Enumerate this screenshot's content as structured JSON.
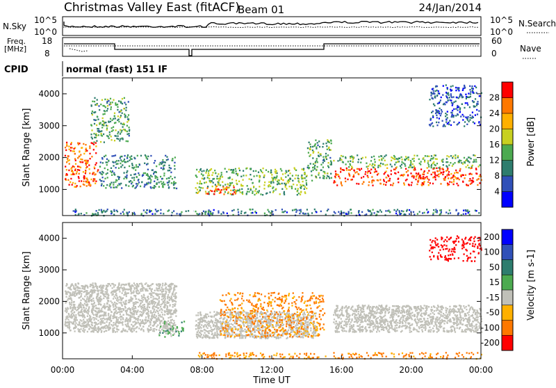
{
  "header": {
    "title": "Christmas Valley East (fitACF)",
    "beam": "Beam 01",
    "date": "24/Jan/2014"
  },
  "status_panels": {
    "nsky_label": "N.Sky",
    "nsearch_label": "N.Search",
    "noise_ticks_left": [
      "10^5",
      "10^0"
    ],
    "noise_ticks_right": [
      "10^5",
      "10^0"
    ],
    "freq_label_line1": "Freq.",
    "freq_label_line2": "[MHz]",
    "freq_ticks": [
      "18",
      "8"
    ],
    "nave_label": "Nave",
    "nave_ticks": [
      "60",
      "0"
    ],
    "cpid_label": "CPID",
    "cpid_value": "normal (fast) 151 IF"
  },
  "chart_data": [
    {
      "type": "heatmap",
      "name": "power",
      "ylabel": "Slant Range [km]",
      "xlabel": "",
      "x_ticks_hours": [
        0,
        4,
        8,
        12,
        16,
        20,
        24
      ],
      "y_ticks": [
        1000,
        2000,
        3000,
        4000
      ],
      "xlim": [
        0,
        24
      ],
      "ylim": [
        180,
        4500
      ],
      "colorbar": {
        "label": "Power [dB]",
        "ticks": [
          "4",
          "8",
          "12",
          "16",
          "20",
          "24",
          "28"
        ],
        "range": [
          0,
          30
        ],
        "colors": [
          "#0000ff",
          "#3050b8",
          "#2e7d6e",
          "#4caa50",
          "#c8d020",
          "#ffb000",
          "#ff7800",
          "#ff0000"
        ]
      },
      "echo_regions": [
        {
          "t0": 0.1,
          "t1": 2.0,
          "r0": 1100,
          "r1": 2500,
          "level": 25
        },
        {
          "t0": 2.1,
          "t1": 6.5,
          "r0": 1050,
          "r1": 2100,
          "level": 10
        },
        {
          "t0": 1.6,
          "t1": 3.8,
          "r0": 2500,
          "r1": 3900,
          "level": 12
        },
        {
          "t0": 7.6,
          "t1": 14.0,
          "r0": 850,
          "r1": 1700,
          "level": 14
        },
        {
          "t0": 8.2,
          "t1": 10.0,
          "r0": 850,
          "r1": 1150,
          "level": 24
        },
        {
          "t0": 14.0,
          "t1": 15.4,
          "r0": 1300,
          "r1": 2600,
          "level": 12
        },
        {
          "t0": 15.5,
          "t1": 24.0,
          "r0": 1150,
          "r1": 1700,
          "level": 27
        },
        {
          "t0": 15.5,
          "t1": 24.0,
          "r0": 1700,
          "r1": 2100,
          "level": 13
        },
        {
          "t0": 0.3,
          "t1": 24.0,
          "r0": 200,
          "r1": 400,
          "level": 8
        },
        {
          "t0": 21.0,
          "t1": 24.0,
          "r0": 3000,
          "r1": 4300,
          "level": 6
        }
      ]
    },
    {
      "type": "heatmap",
      "name": "velocity",
      "xlabel": "Time UT",
      "ylabel": "Slant Range [km]",
      "x_ticks": [
        "00:00",
        "04:00",
        "08:00",
        "12:00",
        "16:00",
        "20:00",
        "00:00"
      ],
      "x_ticks_hours": [
        0,
        4,
        8,
        12,
        16,
        20,
        24
      ],
      "y_ticks": [
        1000,
        2000,
        3000,
        4000
      ],
      "xlim": [
        0,
        24
      ],
      "ylim": [
        180,
        4500
      ],
      "colorbar": {
        "label": "Velocity [m s-1]",
        "ticks": [
          "200",
          "100",
          "50",
          "15",
          "-15",
          "-50",
          "-100",
          "-200"
        ],
        "colors": [
          "#0000ff",
          "#3050b8",
          "#2e7d6e",
          "#4caa50",
          "#c0c0b8",
          "#ffb000",
          "#ff7800",
          "#ff0000"
        ]
      },
      "echo_regions": [
        {
          "t0": 0.1,
          "t1": 6.5,
          "r0": 1050,
          "r1": 2600,
          "class": "ground",
          "value": 0
        },
        {
          "t0": 7.6,
          "t1": 14.5,
          "r0": 850,
          "r1": 1700,
          "class": "ground",
          "value": 0
        },
        {
          "t0": 9.0,
          "t1": 15.0,
          "r0": 900,
          "r1": 2300,
          "class": "toward",
          "value": -60
        },
        {
          "t0": 15.5,
          "t1": 24.0,
          "r0": 1050,
          "r1": 1900,
          "class": "ground",
          "value": 0
        },
        {
          "t0": 5.5,
          "t1": 7.0,
          "r0": 900,
          "r1": 1400,
          "class": "away",
          "value": 30
        },
        {
          "t0": 7.6,
          "t1": 24.0,
          "r0": 200,
          "r1": 400,
          "class": "toward",
          "value": -60
        },
        {
          "t0": 21.0,
          "t1": 24.0,
          "r0": 3300,
          "r1": 4100,
          "class": "toward",
          "value": -150
        }
      ]
    }
  ]
}
